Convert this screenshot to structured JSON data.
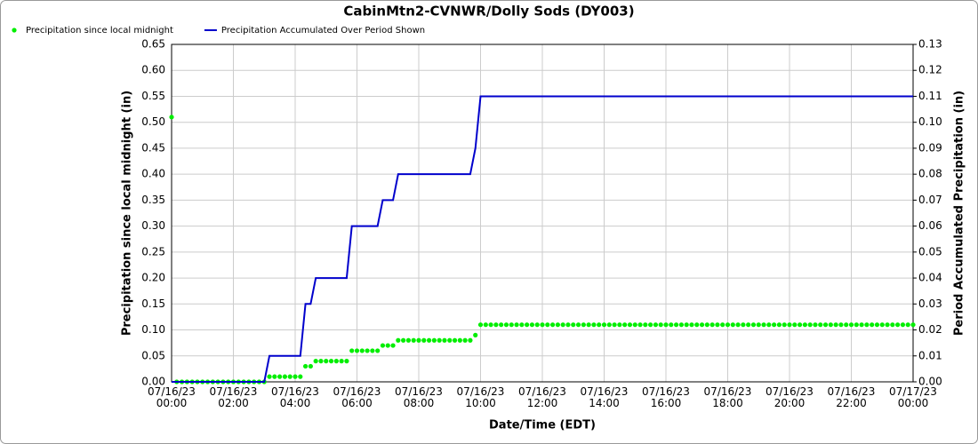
{
  "chart_data": {
    "type": "line",
    "title": "CabinMtn2-CVNWR/Dolly Sods (DY003)",
    "x_label": "Date/Time (EDT)",
    "y_label": "Precipitation since local midnight (in)",
    "y2_label": "Period Accumulated Precipitation (in)",
    "grid": true,
    "legend": "top-left",
    "xlim": [
      0,
      1440
    ],
    "xticks": [
      {
        "value": 0,
        "label": "07/16/23 00:00"
      },
      {
        "value": 120,
        "label": "07/16/23 02:00"
      },
      {
        "value": 240,
        "label": "07/16/23 04:00"
      },
      {
        "value": 360,
        "label": "07/16/23 06:00"
      },
      {
        "value": 480,
        "label": "07/16/23 08:00"
      },
      {
        "value": 600,
        "label": "07/16/23 10:00"
      },
      {
        "value": 720,
        "label": "07/16/23 12:00"
      },
      {
        "value": 840,
        "label": "07/16/23 14:00"
      },
      {
        "value": 960,
        "label": "07/16/23 16:00"
      },
      {
        "value": 1080,
        "label": "07/16/23 18:00"
      },
      {
        "value": 1200,
        "label": "07/16/23 20:00"
      },
      {
        "value": 1320,
        "label": "07/16/23 22:00"
      },
      {
        "value": 1440,
        "label": "07/17/23 00:00"
      }
    ],
    "ylim": [
      0,
      0.65
    ],
    "yticks": [
      {
        "value": 0,
        "label": "0.00"
      },
      {
        "value": 0.05,
        "label": "0.05"
      },
      {
        "value": 0.1,
        "label": "0.10"
      },
      {
        "value": 0.15,
        "label": "0.15"
      },
      {
        "value": 0.2,
        "label": "0.20"
      },
      {
        "value": 0.25,
        "label": "0.25"
      },
      {
        "value": 0.3,
        "label": "0.30"
      },
      {
        "value": 0.35,
        "label": "0.35"
      },
      {
        "value": 0.4,
        "label": "0.40"
      },
      {
        "value": 0.45,
        "label": "0.45"
      },
      {
        "value": 0.5,
        "label": "0.50"
      },
      {
        "value": 0.55,
        "label": "0.55"
      },
      {
        "value": 0.6,
        "label": "0.60"
      },
      {
        "value": 0.65,
        "label": "0.65"
      }
    ],
    "y2lim": [
      0,
      0.13
    ],
    "y2ticks": [
      {
        "value": 0,
        "label": "0.00"
      },
      {
        "value": 0.01,
        "label": "0.01"
      },
      {
        "value": 0.02,
        "label": "0.02"
      },
      {
        "value": 0.03,
        "label": "0.03"
      },
      {
        "value": 0.04,
        "label": "0.04"
      },
      {
        "value": 0.05,
        "label": "0.05"
      },
      {
        "value": 0.06,
        "label": "0.06"
      },
      {
        "value": 0.07,
        "label": "0.07"
      },
      {
        "value": 0.08,
        "label": "0.08"
      },
      {
        "value": 0.09,
        "label": "0.09"
      },
      {
        "value": 0.1,
        "label": "0.10"
      },
      {
        "value": 0.11,
        "label": "0.11"
      },
      {
        "value": 0.12,
        "label": "0.12"
      },
      {
        "value": 0.13,
        "label": "0.13"
      }
    ],
    "x": [
      0,
      10,
      20,
      30,
      40,
      50,
      60,
      70,
      80,
      90,
      100,
      110,
      120,
      130,
      140,
      150,
      160,
      170,
      180,
      190,
      200,
      210,
      220,
      230,
      240,
      250,
      260,
      270,
      280,
      290,
      300,
      310,
      320,
      330,
      340,
      350,
      360,
      370,
      380,
      390,
      400,
      410,
      420,
      430,
      440,
      450,
      460,
      470,
      480,
      490,
      500,
      510,
      520,
      530,
      540,
      550,
      560,
      570,
      580,
      590,
      600,
      610,
      620,
      630,
      640,
      650,
      660,
      670,
      680,
      690,
      700,
      710,
      720,
      730,
      740,
      750,
      760,
      770,
      780,
      790,
      800,
      810,
      820,
      830,
      840,
      850,
      860,
      870,
      880,
      890,
      900,
      910,
      920,
      930,
      940,
      950,
      960,
      970,
      980,
      990,
      1000,
      1010,
      1020,
      1030,
      1040,
      1050,
      1060,
      1070,
      1080,
      1090,
      1100,
      1110,
      1120,
      1130,
      1140,
      1150,
      1160,
      1170,
      1180,
      1190,
      1200,
      1210,
      1220,
      1230,
      1240,
      1250,
      1260,
      1270,
      1280,
      1290,
      1300,
      1310,
      1320,
      1330,
      1340,
      1350,
      1360,
      1370,
      1380,
      1390,
      1400,
      1410,
      1420,
      1430,
      1440
    ],
    "series": [
      {
        "name": "Precipitation since local midnight",
        "type": "scatter",
        "color": "#00ee00",
        "values": [
          0.51,
          0,
          0,
          0,
          0,
          0,
          0,
          0,
          0,
          0,
          0,
          0,
          0,
          0,
          0,
          0,
          0,
          0,
          0,
          0.01,
          0.01,
          0.01,
          0.01,
          0.01,
          0.01,
          0.01,
          0.03,
          0.03,
          0.04,
          0.04,
          0.04,
          0.04,
          0.04,
          0.04,
          0.04,
          0.06,
          0.06,
          0.06,
          0.06,
          0.06,
          0.06,
          0.07,
          0.07,
          0.07,
          0.08,
          0.08,
          0.08,
          0.08,
          0.08,
          0.08,
          0.08,
          0.08,
          0.08,
          0.08,
          0.08,
          0.08,
          0.08,
          0.08,
          0.08,
          0.09,
          0.11,
          0.11,
          0.11,
          0.11,
          0.11,
          0.11,
          0.11,
          0.11,
          0.11,
          0.11,
          0.11,
          0.11,
          0.11,
          0.11,
          0.11,
          0.11,
          0.11,
          0.11,
          0.11,
          0.11,
          0.11,
          0.11,
          0.11,
          0.11,
          0.11,
          0.11,
          0.11,
          0.11,
          0.11,
          0.11,
          0.11,
          0.11,
          0.11,
          0.11,
          0.11,
          0.11,
          0.11,
          0.11,
          0.11,
          0.11,
          0.11,
          0.11,
          0.11,
          0.11,
          0.11,
          0.11,
          0.11,
          0.11,
          0.11,
          0.11,
          0.11,
          0.11,
          0.11,
          0.11,
          0.11,
          0.11,
          0.11,
          0.11,
          0.11,
          0.11,
          0.11,
          0.11,
          0.11,
          0.11,
          0.11,
          0.11,
          0.11,
          0.11,
          0.11,
          0.11,
          0.11,
          0.11,
          0.11,
          0.11,
          0.11,
          0.11,
          0.11,
          0.11,
          0.11,
          0.11,
          0.11,
          0.11,
          0.11,
          0.11,
          0.11
        ]
      },
      {
        "name": "Precipitation Accumulated Over Period Shown",
        "type": "line",
        "color": "#0000cc",
        "axis": "y2",
        "values": [
          0,
          0,
          0,
          0,
          0,
          0,
          0,
          0,
          0,
          0,
          0,
          0,
          0,
          0,
          0,
          0,
          0,
          0,
          0,
          0.01,
          0.01,
          0.01,
          0.01,
          0.01,
          0.01,
          0.01,
          0.03,
          0.03,
          0.04,
          0.04,
          0.04,
          0.04,
          0.04,
          0.04,
          0.04,
          0.06,
          0.06,
          0.06,
          0.06,
          0.06,
          0.06,
          0.07,
          0.07,
          0.07,
          0.08,
          0.08,
          0.08,
          0.08,
          0.08,
          0.08,
          0.08,
          0.08,
          0.08,
          0.08,
          0.08,
          0.08,
          0.08,
          0.08,
          0.08,
          0.09,
          0.11,
          0.11,
          0.11,
          0.11,
          0.11,
          0.11,
          0.11,
          0.11,
          0.11,
          0.11,
          0.11,
          0.11,
          0.11,
          0.11,
          0.11,
          0.11,
          0.11,
          0.11,
          0.11,
          0.11,
          0.11,
          0.11,
          0.11,
          0.11,
          0.11,
          0.11,
          0.11,
          0.11,
          0.11,
          0.11,
          0.11,
          0.11,
          0.11,
          0.11,
          0.11,
          0.11,
          0.11,
          0.11,
          0.11,
          0.11,
          0.11,
          0.11,
          0.11,
          0.11,
          0.11,
          0.11,
          0.11,
          0.11,
          0.11,
          0.11,
          0.11,
          0.11,
          0.11,
          0.11,
          0.11,
          0.11,
          0.11,
          0.11,
          0.11,
          0.11,
          0.11,
          0.11,
          0.11,
          0.11,
          0.11,
          0.11,
          0.11,
          0.11,
          0.11,
          0.11,
          0.11,
          0.11,
          0.11,
          0.11,
          0.11,
          0.11,
          0.11,
          0.11,
          0.11,
          0.11,
          0.11,
          0.11,
          0.11,
          0.11,
          0.11
        ]
      }
    ]
  }
}
